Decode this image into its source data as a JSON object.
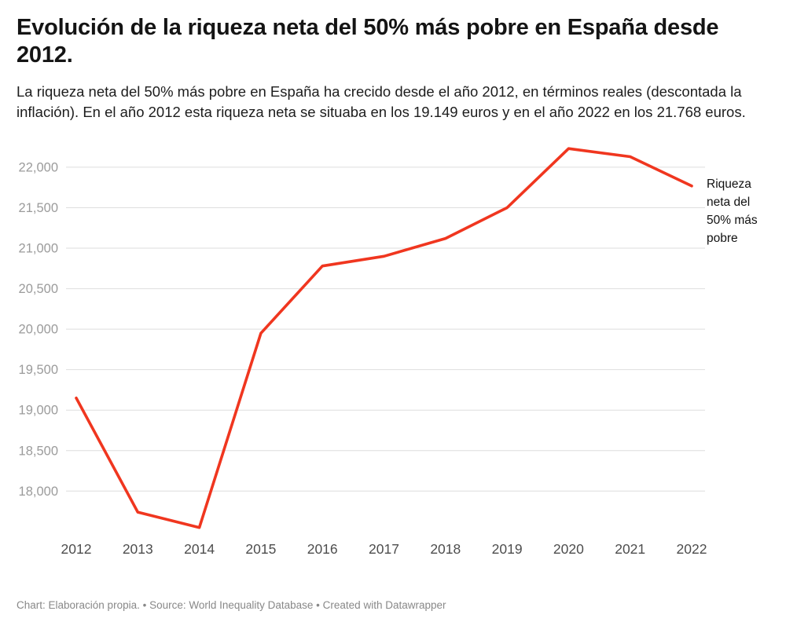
{
  "header": {
    "title": "Evolución de la riqueza neta del 50% más pobre en España desde 2012.",
    "description": "La riqueza neta del 50% más pobre en España ha crecido desde el año 2012, en términos reales (descontada la inflación). En el año 2012 esta riqueza neta se situaba en los 19.149 euros y en el año 2022 en los 21.768 euros."
  },
  "chart_data": {
    "type": "line",
    "title": "Evolución de la riqueza neta del 50% más pobre en España desde 2012.",
    "x": [
      2012,
      2013,
      2014,
      2015,
      2016,
      2017,
      2018,
      2019,
      2020,
      2021,
      2022
    ],
    "series": [
      {
        "name": "Riqueza neta del 50% más pobre",
        "values": [
          19149,
          17740,
          17550,
          19950,
          20780,
          20900,
          21120,
          21500,
          22230,
          22130,
          21768
        ]
      }
    ],
    "annotation": "Riqueza neta del 50% más pobre",
    "xlabel": "",
    "ylabel": "",
    "ylim": [
      17450,
      22300
    ],
    "yticks": [
      18000,
      18500,
      19000,
      19500,
      20000,
      20500,
      21000,
      21500,
      22000
    ],
    "grid": true,
    "legend_position": "right-annotation",
    "line_color": "#f0361f",
    "grid_color": "#dedede",
    "ytick_color": "#9b9b9b",
    "xtick_color": "#4d4d4d"
  },
  "footer": {
    "text": "Chart: Elaboración propia. • Source: World Inequality Database • Created with Datawrapper"
  }
}
